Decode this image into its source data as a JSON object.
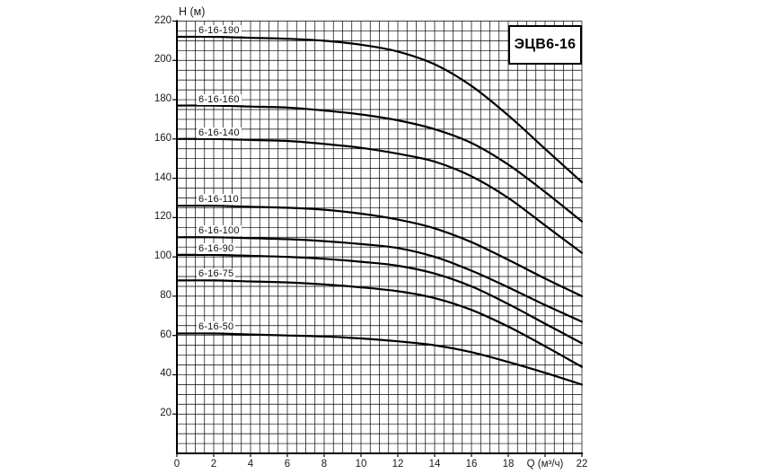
{
  "title_box": {
    "label": "ЭЦВ6-16"
  },
  "axes": {
    "y_title": "H (м)",
    "x_title": "Q (м³/ч)"
  },
  "chart_data": {
    "type": "line",
    "title": "ЭЦВ6-16",
    "xlabel": "Q (м³/ч)",
    "ylabel": "H (м)",
    "xlim": [
      0,
      22
    ],
    "ylim": [
      0,
      220
    ],
    "grid": {
      "visible": true,
      "x_minor_step": 0.5,
      "y_minor_step": 5
    },
    "x_ticks": [
      0,
      2,
      4,
      6,
      8,
      10,
      12,
      14,
      16,
      18,
      20,
      22
    ],
    "x_tick_labels": [
      "0",
      "2",
      "4",
      "6",
      "8",
      "10",
      "12",
      "14",
      "16",
      "18",
      "Q (м³/ч)",
      "22"
    ],
    "y_ticks": [
      20,
      40,
      60,
      80,
      100,
      120,
      140,
      160,
      180,
      200,
      220
    ],
    "legend_position": "inline-labels",
    "curve_color": "#000000",
    "x": [
      0,
      2,
      4,
      6,
      8,
      10,
      12,
      14,
      16,
      18,
      20,
      22
    ],
    "series": [
      {
        "name": "6-16-190",
        "values": [
          212,
          212,
          211.5,
          211,
          210,
          208,
          204.5,
          198,
          187,
          172,
          155,
          138
        ]
      },
      {
        "name": "6-16-160",
        "values": [
          177,
          177,
          176.5,
          176,
          174.5,
          172.5,
          169.5,
          165,
          158,
          147,
          133,
          118
        ]
      },
      {
        "name": "6-16-140",
        "values": [
          160,
          160,
          159.5,
          159,
          157.5,
          155.5,
          152.5,
          148.5,
          141,
          130,
          116,
          102
        ]
      },
      {
        "name": "6-16-110",
        "values": [
          126,
          126,
          125.5,
          125,
          124,
          122,
          119,
          114.5,
          107.5,
          98.5,
          89,
          80
        ]
      },
      {
        "name": "6-16-100",
        "values": [
          110,
          110,
          109.5,
          109,
          108,
          106.5,
          104.5,
          100,
          93,
          84.5,
          75.5,
          67
        ]
      },
      {
        "name": "6-16-90",
        "values": [
          101,
          101,
          100.5,
          100,
          99,
          97.5,
          95.5,
          91.5,
          85,
          76,
          66,
          56
        ]
      },
      {
        "name": "6-16-75",
        "values": [
          88,
          88,
          87.5,
          87,
          86,
          84.5,
          82.5,
          79,
          73,
          64.5,
          54.5,
          44
        ]
      },
      {
        "name": "6-16-50",
        "values": [
          61,
          61,
          60.5,
          60,
          59.5,
          58.5,
          57,
          55,
          51.5,
          46.5,
          41,
          35
        ]
      }
    ]
  }
}
